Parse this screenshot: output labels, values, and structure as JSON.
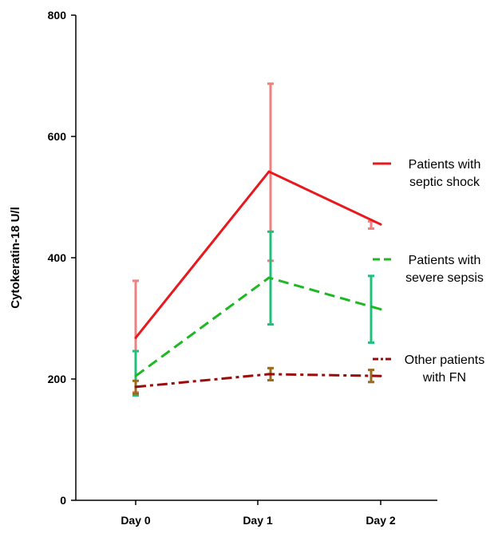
{
  "chart_data": {
    "type": "line",
    "categories": [
      "Day 0",
      "Day 1",
      "Day 2"
    ],
    "ylabel": "Cytokeratin-18 U/l",
    "xlabel": "",
    "ylim": [
      0,
      800
    ],
    "yticks": [
      0,
      200,
      400,
      600,
      800
    ],
    "grid": false,
    "legend_position": "right",
    "series": [
      {
        "name_lines": [
          "Patients with",
          "septic shock"
        ],
        "color": "#e8191e",
        "error_color": "#f08080",
        "line_style": "solid",
        "values": [
          268,
          542,
          455
        ],
        "error_low": [
          178,
          395,
          448
        ],
        "error_high": [
          362,
          687,
          460
        ]
      },
      {
        "name_lines": [
          "Patients with",
          "severe sepsis"
        ],
        "color": "#1fb823",
        "error_color": "#1fc07a",
        "line_style": "dashed",
        "values": [
          205,
          367,
          315
        ],
        "error_low": [
          173,
          290,
          260
        ],
        "error_high": [
          246,
          443,
          370
        ]
      },
      {
        "name_lines": [
          "Other patients",
          "with FN"
        ],
        "color": "#9b0a0a",
        "error_color": "#9a6a1e",
        "line_style": "dashdot",
        "values": [
          187,
          208,
          205
        ],
        "error_low": [
          176,
          198,
          195
        ],
        "error_high": [
          197,
          218,
          215
        ]
      }
    ]
  }
}
